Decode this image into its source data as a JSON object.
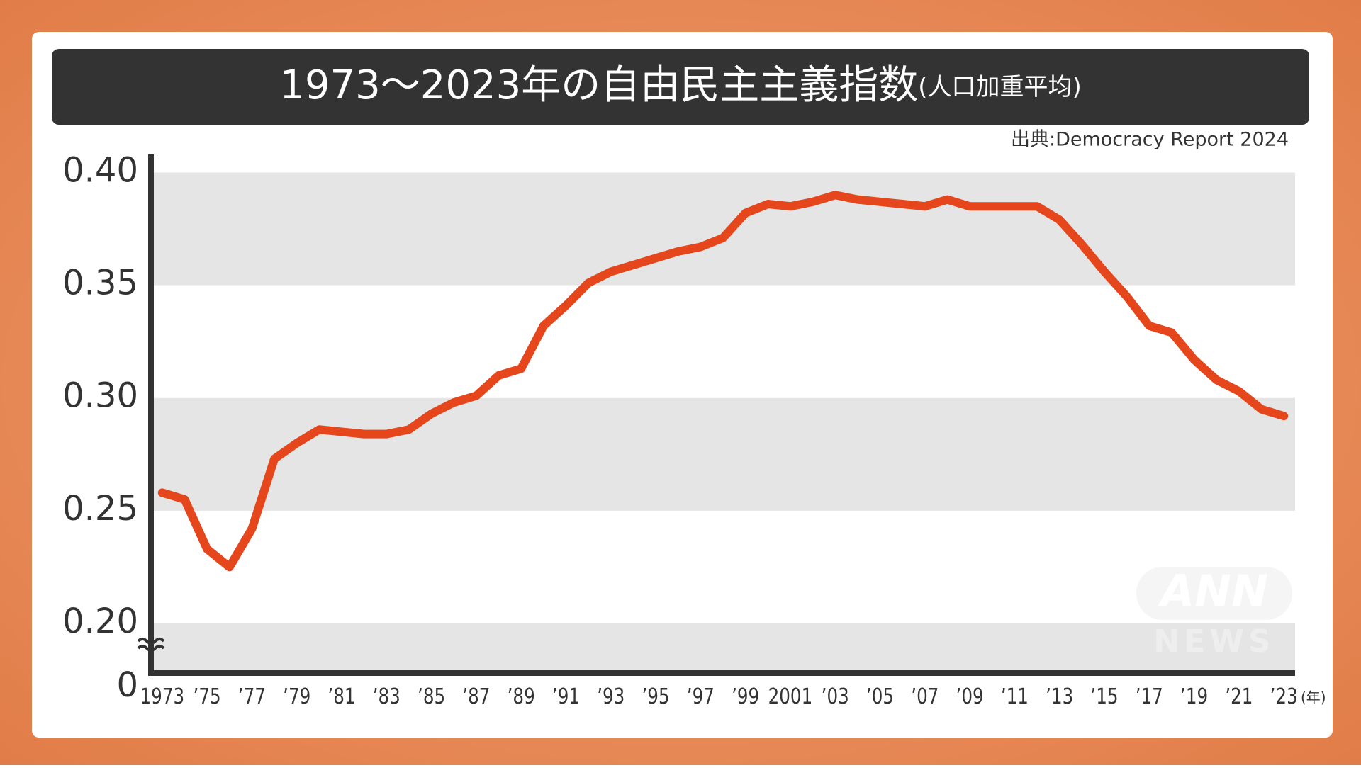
{
  "chart_data": {
    "type": "line",
    "title": "1973〜2023年の自由民主主義指数",
    "title_suffix": "(人口加重平均)",
    "source": "出典:Democracy Report 2024",
    "x_unit": "(年)",
    "y_origin_label": "0",
    "watermark": [
      "ANN",
      "NEWS"
    ],
    "x": [
      1973,
      1974,
      1975,
      1976,
      1977,
      1978,
      1979,
      1980,
      1981,
      1982,
      1983,
      1984,
      1985,
      1986,
      1987,
      1988,
      1989,
      1990,
      1991,
      1992,
      1993,
      1994,
      1995,
      1996,
      1997,
      1998,
      1999,
      2000,
      2001,
      2002,
      2003,
      2004,
      2005,
      2006,
      2007,
      2008,
      2009,
      2010,
      2011,
      2012,
      2013,
      2014,
      2015,
      2016,
      2017,
      2018,
      2019,
      2020,
      2021,
      2022,
      2023
    ],
    "series": [
      {
        "name": "自由民主主義指数",
        "color": "#e5461c",
        "values": [
          0.258,
          0.255,
          0.233,
          0.225,
          0.242,
          0.273,
          0.28,
          0.286,
          0.285,
          0.284,
          0.284,
          0.286,
          0.293,
          0.298,
          0.301,
          0.31,
          0.313,
          0.332,
          0.341,
          0.351,
          0.356,
          0.359,
          0.362,
          0.365,
          0.367,
          0.371,
          0.382,
          0.386,
          0.385,
          0.387,
          0.39,
          0.388,
          0.387,
          0.386,
          0.385,
          0.388,
          0.385,
          0.385,
          0.385,
          0.385,
          0.379,
          0.368,
          0.356,
          0.345,
          0.332,
          0.329,
          0.317,
          0.308,
          0.303,
          0.295,
          0.292
        ]
      }
    ],
    "xlim": [
      1972.5,
      2023.5
    ],
    "xticks": [
      {
        "value": 1973,
        "label": "1973"
      },
      {
        "value": 1975,
        "label": "’75"
      },
      {
        "value": 1977,
        "label": "’77"
      },
      {
        "value": 1979,
        "label": "’79"
      },
      {
        "value": 1981,
        "label": "’81"
      },
      {
        "value": 1983,
        "label": "’83"
      },
      {
        "value": 1985,
        "label": "’85"
      },
      {
        "value": 1987,
        "label": "’87"
      },
      {
        "value": 1989,
        "label": "’89"
      },
      {
        "value": 1991,
        "label": "’91"
      },
      {
        "value": 1993,
        "label": "’93"
      },
      {
        "value": 1995,
        "label": "’95"
      },
      {
        "value": 1997,
        "label": "’97"
      },
      {
        "value": 1999,
        "label": "’99"
      },
      {
        "value": 2001,
        "label": "2001"
      },
      {
        "value": 2003,
        "label": "’03"
      },
      {
        "value": 2005,
        "label": "’05"
      },
      {
        "value": 2007,
        "label": "’07"
      },
      {
        "value": 2009,
        "label": "’09"
      },
      {
        "value": 2011,
        "label": "’11"
      },
      {
        "value": 2013,
        "label": "’13"
      },
      {
        "value": 2015,
        "label": "’15"
      },
      {
        "value": 2017,
        "label": "’17"
      },
      {
        "value": 2019,
        "label": "’19"
      },
      {
        "value": 2021,
        "label": "’21"
      },
      {
        "value": 2023,
        "label": "’23"
      }
    ],
    "ylim": [
      0.178,
      0.408
    ],
    "yticks": [
      {
        "value": 0.2,
        "label": "0.20"
      },
      {
        "value": 0.25,
        "label": "0.25"
      },
      {
        "value": 0.3,
        "label": "0.30"
      },
      {
        "value": 0.35,
        "label": "0.35"
      },
      {
        "value": 0.4,
        "label": "0.40"
      }
    ],
    "bands": true
  }
}
